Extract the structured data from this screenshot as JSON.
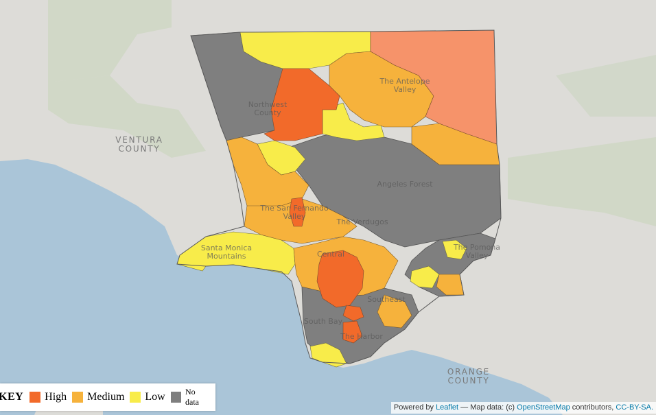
{
  "map": {
    "basemap_labels": {
      "ventura_county": [
        "VENTURA",
        "COUNTY"
      ],
      "orange_county": [
        "ORANGE",
        "COUNTY"
      ],
      "northwest_county": [
        "Northwest",
        "County"
      ],
      "antelope_valley": [
        "The Antelope",
        "Valley"
      ],
      "angeles_forest": [
        "Angeles Forest"
      ],
      "san_fernando_valley": [
        "The San Fernando",
        "Valley"
      ],
      "the_verdugos": [
        "The Verdugos"
      ],
      "santa_monica_mountains": [
        "Santa Monica",
        "Mountains"
      ],
      "pomona_valley": [
        "The Pomona",
        "Valley"
      ],
      "central": [
        "Central"
      ],
      "southeast": [
        "Southeast"
      ],
      "south_bay": [
        "South Bay"
      ],
      "the_harbor": [
        "The Harbor"
      ]
    },
    "colors": {
      "high": "#f26a2a",
      "medium": "#f6b23c",
      "low": "#f8ec4a",
      "no_data": "#7f7f7f",
      "water": "#aac5d8",
      "land": "#dddcd8",
      "forest": "#ccd6c1"
    }
  },
  "legend": {
    "title": "KEY",
    "items": [
      {
        "label": "High",
        "color": "#f26a2a"
      },
      {
        "label": "Medium",
        "color": "#f6b23c"
      },
      {
        "label": "Low",
        "color": "#f8ec4a"
      },
      {
        "label": "No data",
        "color": "#7f7f7f"
      }
    ]
  },
  "attribution": {
    "powered_by": "Powered by",
    "leaflet": "Leaflet",
    "map_data": "— Map data: (c)",
    "osm": "OpenStreetMap",
    "contributors": "contributors,",
    "license": "CC-BY-SA."
  }
}
